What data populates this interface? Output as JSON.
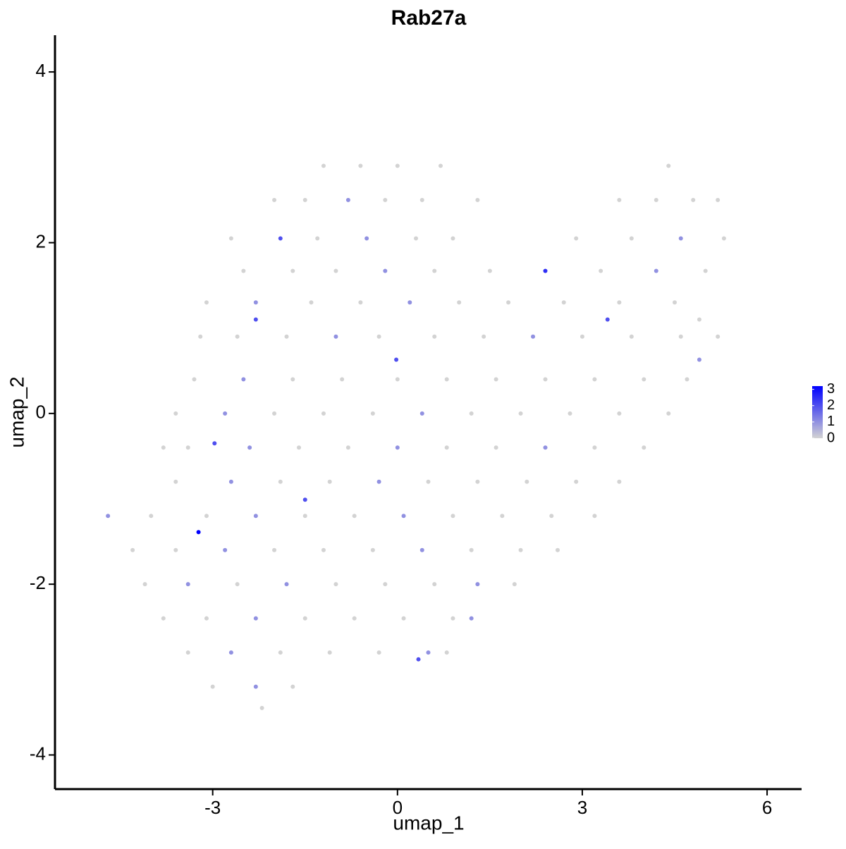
{
  "chart_data": {
    "type": "scatter",
    "title": "Rab27a",
    "xlabel": "umap_1",
    "ylabel": "umap_2",
    "xlim": [
      -5.56,
      6.56
    ],
    "ylim": [
      -4.4,
      4.43
    ],
    "xticks": [
      -3,
      0,
      3,
      6
    ],
    "yticks": [
      -4,
      -2,
      0,
      2,
      4
    ],
    "low_color": "#d3d3d3",
    "high_color": "#0000ff",
    "clim": [
      0,
      3.2
    ],
    "colorbar_ticks": [
      0,
      1,
      2,
      3
    ],
    "x": [
      -1.2,
      -0.6,
      0,
      0.7,
      4.4,
      -2.0,
      -1.5,
      -0.8,
      -0.2,
      0.4,
      1.3,
      3.6,
      4.2,
      4.8,
      5.2,
      -2.7,
      -1.9,
      -1.3,
      -0.5,
      0.3,
      0.9,
      2.9,
      3.8,
      4.6,
      5.3,
      -2.5,
      -1.7,
      -1.0,
      -0.2,
      0.6,
      1.5,
      2.4,
      3.3,
      4.2,
      5.0,
      -3.1,
      -2.3,
      -1.4,
      -0.6,
      0.2,
      1.0,
      1.8,
      2.7,
      3.6,
      4.5,
      -2.3,
      3.41,
      4.9,
      -3.2,
      -2.6,
      -1.8,
      -1.0,
      -0.3,
      0.6,
      1.4,
      2.2,
      3.0,
      3.8,
      4.6,
      5.2,
      -0.02,
      4.9,
      -3.3,
      -2.5,
      -1.7,
      -0.9,
      0.0,
      0.8,
      1.6,
      2.4,
      3.2,
      4.0,
      4.7,
      -3.6,
      -2.8,
      -2.0,
      -1.2,
      -0.4,
      0.4,
      1.2,
      2.0,
      2.8,
      3.6,
      4.4,
      -2.97,
      -3.8,
      -3.4,
      -2.4,
      -1.6,
      -0.8,
      0.0,
      0.8,
      1.6,
      2.4,
      3.2,
      4.0,
      -3.6,
      -2.7,
      -1.9,
      -1.1,
      -0.3,
      0.5,
      1.3,
      2.1,
      2.9,
      3.6,
      -1.5,
      -4.7,
      -4.0,
      -3.1,
      -2.3,
      -1.5,
      -0.7,
      0.1,
      0.9,
      1.7,
      2.5,
      3.2,
      -3.23,
      -4.3,
      -3.6,
      -2.8,
      -2.0,
      -1.2,
      -0.4,
      0.4,
      1.2,
      2.0,
      2.6,
      -4.1,
      -3.4,
      -2.6,
      -1.8,
      -1.0,
      -0.2,
      0.6,
      1.3,
      1.9,
      -3.8,
      -3.1,
      -2.3,
      -1.5,
      -0.7,
      0.1,
      0.9,
      1.2,
      -3.4,
      -2.7,
      -1.9,
      -1.1,
      -0.3,
      0.5,
      0.8,
      0.34,
      -3.0,
      -2.3,
      -1.7,
      -2.2
    ],
    "y": [
      2.9,
      2.9,
      2.9,
      2.9,
      2.9,
      2.5,
      2.5,
      2.5,
      2.5,
      2.5,
      2.5,
      2.5,
      2.5,
      2.5,
      2.5,
      2.05,
      2.05,
      2.05,
      2.05,
      2.05,
      2.05,
      2.05,
      2.05,
      2.05,
      2.05,
      1.67,
      1.67,
      1.67,
      1.67,
      1.67,
      1.67,
      1.67,
      1.67,
      1.67,
      1.67,
      1.3,
      1.3,
      1.3,
      1.3,
      1.3,
      1.3,
      1.3,
      1.3,
      1.3,
      1.3,
      1.1,
      1.1,
      1.1,
      0.9,
      0.9,
      0.9,
      0.9,
      0.9,
      0.9,
      0.9,
      0.9,
      0.9,
      0.9,
      0.9,
      0.9,
      0.63,
      0.63,
      0.4,
      0.4,
      0.4,
      0.4,
      0.4,
      0.4,
      0.4,
      0.4,
      0.4,
      0.4,
      0.4,
      0,
      0,
      0,
      0,
      0,
      0,
      0,
      0,
      0,
      0,
      0,
      -0.35,
      -0.4,
      -0.4,
      -0.4,
      -0.4,
      -0.4,
      -0.4,
      -0.4,
      -0.4,
      -0.4,
      -0.4,
      -0.4,
      -0.8,
      -0.8,
      -0.8,
      -0.8,
      -0.8,
      -0.8,
      -0.8,
      -0.8,
      -0.8,
      -0.8,
      -1.01,
      -1.2,
      -1.2,
      -1.2,
      -1.2,
      -1.2,
      -1.2,
      -1.2,
      -1.2,
      -1.2,
      -1.2,
      -1.2,
      -1.39,
      -1.6,
      -1.6,
      -1.6,
      -1.6,
      -1.6,
      -1.6,
      -1.6,
      -1.6,
      -1.6,
      -1.6,
      -2.0,
      -2.0,
      -2.0,
      -2.0,
      -2.0,
      -2.0,
      -2.0,
      -2.0,
      -2.0,
      -2.4,
      -2.4,
      -2.4,
      -2.4,
      -2.4,
      -2.4,
      -2.4,
      -2.4,
      -2.8,
      -2.8,
      -2.8,
      -2.8,
      -2.8,
      -2.8,
      -2.8,
      -2.88,
      -3.2,
      -3.2,
      -3.2,
      -3.45
    ],
    "values": [
      0,
      0,
      0,
      0,
      0,
      0,
      0,
      1,
      0,
      0,
      0,
      0,
      0,
      0,
      0,
      0,
      2,
      0,
      1,
      0,
      0,
      0,
      0,
      1,
      0,
      0,
      0,
      0,
      1,
      0,
      0,
      2.5,
      0,
      1,
      0,
      0,
      1,
      0,
      0,
      1,
      0,
      0,
      0,
      0,
      0,
      2,
      2,
      0,
      0,
      0,
      0,
      1,
      0,
      0,
      0,
      1,
      0,
      0,
      0,
      0,
      2,
      1,
      0,
      1,
      0,
      0,
      0,
      0,
      0,
      0,
      0,
      0,
      0,
      0,
      1,
      0,
      0,
      0,
      1,
      0,
      0,
      0,
      0,
      0,
      2,
      0,
      0,
      1,
      0,
      0,
      1,
      0,
      0,
      1,
      0,
      0,
      0,
      1,
      0,
      0,
      1,
      0,
      0,
      0,
      0,
      0,
      2,
      1,
      0,
      0,
      1,
      0,
      0,
      1,
      0,
      0,
      0,
      0,
      3.2,
      0,
      0,
      1,
      0,
      0,
      0,
      1,
      0,
      0,
      0,
      0,
      1,
      0,
      1,
      0,
      0,
      0,
      1,
      0,
      0,
      0,
      1,
      0,
      0,
      0,
      0,
      1,
      0,
      1,
      0,
      0,
      0,
      1,
      0,
      2,
      0,
      1,
      0,
      0
    ]
  }
}
